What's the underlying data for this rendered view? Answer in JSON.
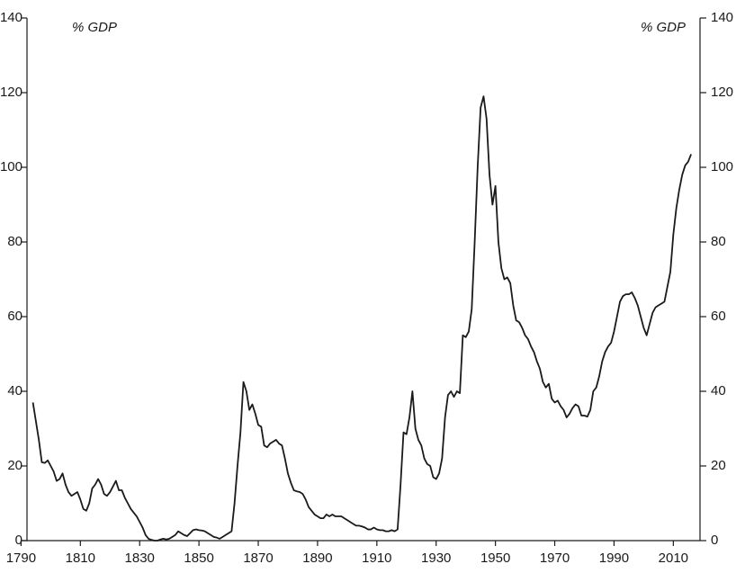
{
  "chart_data": {
    "type": "line",
    "y_label": "% GDP",
    "y2_label": "% GDP",
    "x": [
      1794,
      1795,
      1796,
      1797,
      1798,
      1799,
      1800,
      1801,
      1802,
      1803,
      1804,
      1805,
      1806,
      1807,
      1808,
      1809,
      1810,
      1811,
      1812,
      1813,
      1814,
      1815,
      1816,
      1817,
      1818,
      1819,
      1820,
      1821,
      1822,
      1823,
      1824,
      1825,
      1826,
      1827,
      1828,
      1829,
      1830,
      1831,
      1832,
      1833,
      1834,
      1835,
      1836,
      1837,
      1838,
      1839,
      1840,
      1841,
      1842,
      1843,
      1844,
      1845,
      1846,
      1847,
      1848,
      1849,
      1850,
      1851,
      1852,
      1853,
      1854,
      1855,
      1856,
      1857,
      1858,
      1859,
      1860,
      1861,
      1862,
      1863,
      1864,
      1865,
      1866,
      1867,
      1868,
      1869,
      1870,
      1871,
      1872,
      1873,
      1874,
      1875,
      1876,
      1877,
      1878,
      1879,
      1880,
      1881,
      1882,
      1883,
      1884,
      1885,
      1886,
      1887,
      1888,
      1889,
      1890,
      1891,
      1892,
      1893,
      1894,
      1895,
      1896,
      1897,
      1898,
      1899,
      1900,
      1901,
      1902,
      1903,
      1904,
      1905,
      1906,
      1907,
      1908,
      1909,
      1910,
      1911,
      1912,
      1913,
      1914,
      1915,
      1916,
      1917,
      1918,
      1919,
      1920,
      1921,
      1922,
      1923,
      1924,
      1925,
      1926,
      1927,
      1928,
      1929,
      1930,
      1931,
      1932,
      1933,
      1934,
      1935,
      1936,
      1937,
      1938,
      1939,
      1940,
      1941,
      1942,
      1943,
      1944,
      1945,
      1946,
      1947,
      1948,
      1949,
      1950,
      1951,
      1952,
      1953,
      1954,
      1955,
      1956,
      1957,
      1958,
      1959,
      1960,
      1961,
      1962,
      1963,
      1964,
      1965,
      1966,
      1967,
      1968,
      1969,
      1970,
      1971,
      1972,
      1973,
      1974,
      1975,
      1976,
      1977,
      1978,
      1979,
      1980,
      1981,
      1982,
      1983,
      1984,
      1985,
      1986,
      1987,
      1988,
      1989,
      1990,
      1991,
      1992,
      1993,
      1994,
      1995,
      1996,
      1997,
      1998,
      1999,
      2000,
      2001,
      2002,
      2003,
      2004,
      2005,
      2006,
      2007,
      2008,
      2009,
      2010,
      2011,
      2012,
      2013,
      2014,
      2015,
      2016
    ],
    "series": [
      {
        "color": "#1a1a1a",
        "values": [
          37,
          32,
          27,
          21,
          20.8,
          21.5,
          20,
          18.5,
          16,
          16.5,
          18,
          15,
          13,
          12,
          12.5,
          13,
          11,
          8.5,
          8,
          10,
          14,
          15,
          16.5,
          15,
          12.5,
          12,
          13,
          14.5,
          16,
          13.5,
          13.5,
          11.5,
          10,
          8.5,
          7.5,
          6.5,
          5,
          3.5,
          1.5,
          0.5,
          0.2,
          0,
          0,
          0.3,
          0.5,
          0.3,
          0.5,
          1,
          1.5,
          2.5,
          2,
          1.5,
          1.2,
          2,
          2.8,
          3,
          2.8,
          2.7,
          2.5,
          2,
          1.5,
          1,
          0.8,
          0.5,
          1,
          1.5,
          2,
          2.5,
          10,
          20,
          29,
          42.5,
          40,
          35,
          36.5,
          34,
          31,
          30.5,
          25.5,
          25,
          26,
          26.5,
          27,
          26,
          25.5,
          22,
          18,
          15.5,
          13.5,
          13.2,
          13,
          12.5,
          11,
          9,
          8,
          7,
          6.5,
          6,
          6,
          7,
          6.5,
          7,
          6.5,
          6.5,
          6.5,
          6,
          5.5,
          5,
          4.5,
          4,
          4,
          3.8,
          3.5,
          3,
          3,
          3.5,
          3,
          2.8,
          2.8,
          2.5,
          2.5,
          2.8,
          2.5,
          3,
          15,
          29,
          28.5,
          33,
          40,
          30,
          27,
          25.5,
          22,
          20.5,
          20,
          17,
          16.5,
          18,
          22,
          33,
          39,
          40,
          38.5,
          40,
          39.5,
          55,
          54.5,
          56,
          62,
          80,
          100,
          116,
          119,
          113,
          98,
          90,
          95,
          80,
          73,
          70,
          70.5,
          69,
          63,
          59,
          58.5,
          57,
          55,
          54,
          52,
          50.5,
          48,
          46,
          42.5,
          41,
          42,
          38,
          37,
          37.5,
          36,
          35,
          33,
          34,
          35.5,
          36.5,
          36,
          33.5,
          33.5,
          33.2,
          35,
          40,
          41,
          44,
          48,
          50.5,
          52,
          53,
          56,
          60,
          64,
          65.5,
          66,
          66,
          66.5,
          65,
          63,
          60,
          57,
          55,
          58,
          61,
          62.5,
          63,
          63.5,
          64,
          68,
          72,
          82,
          89,
          94,
          98,
          100.5,
          101.5,
          103.5
        ]
      }
    ],
    "xlim": [
      1792,
      2019
    ],
    "xticks": [
      1790,
      1810,
      1830,
      1850,
      1870,
      1890,
      1910,
      1930,
      1950,
      1970,
      1990,
      2010
    ],
    "ylim": [
      0,
      140
    ],
    "yticks": [
      0,
      20,
      40,
      60,
      80,
      100,
      120,
      140
    ],
    "y2lim": [
      0,
      140
    ],
    "y2ticks": [
      0,
      20,
      40,
      60,
      80,
      100,
      120,
      140
    ]
  }
}
